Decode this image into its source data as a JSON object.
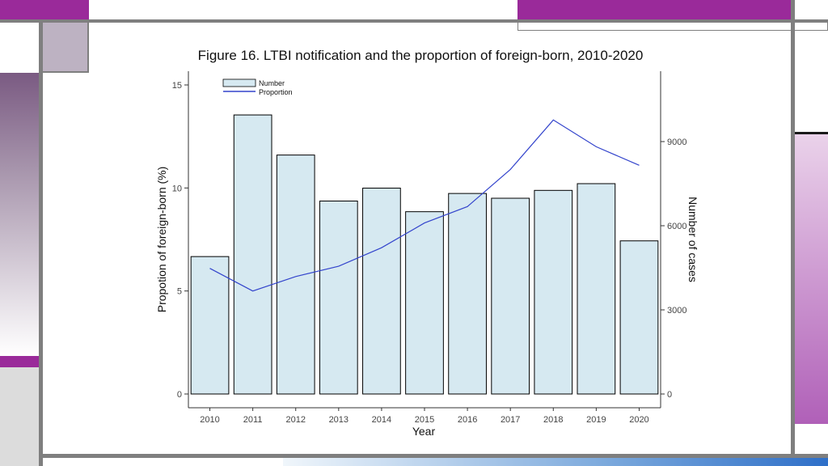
{
  "colors": {
    "bar_fill": "#d6e9f1",
    "bar_stroke": "#000000",
    "line": "#3344cc",
    "accent": "#9a2a9a"
  },
  "chart_data": {
    "type": "bar",
    "title": "Figure 16. LTBI notification and the proportion of foreign-born, 2010-2020",
    "xlabel": "Year",
    "ylabel_left": "Propotion of foreign-born (%)",
    "ylabel_right": "Number of cases",
    "categories": [
      "2010",
      "2011",
      "2012",
      "2013",
      "2014",
      "2015",
      "2016",
      "2017",
      "2018",
      "2019",
      "2020"
    ],
    "ylim_left": [
      0,
      15
    ],
    "ylim_right": [
      0,
      11000
    ],
    "yticks_left": [
      0,
      5,
      10,
      15
    ],
    "yticks_right": [
      0,
      3000,
      6000,
      9000
    ],
    "grid": false,
    "legend_position": "top-left",
    "series": [
      {
        "name": "Number",
        "type": "bar",
        "axis": "right",
        "values": [
          4900,
          9950,
          8520,
          6880,
          7340,
          6500,
          7150,
          6980,
          7260,
          7500,
          5460
        ]
      },
      {
        "name": "Proportion",
        "type": "line",
        "axis": "left",
        "values": [
          6.1,
          5.0,
          5.7,
          6.2,
          7.1,
          8.3,
          9.1,
          10.9,
          13.3,
          12.0,
          11.1
        ]
      }
    ]
  }
}
